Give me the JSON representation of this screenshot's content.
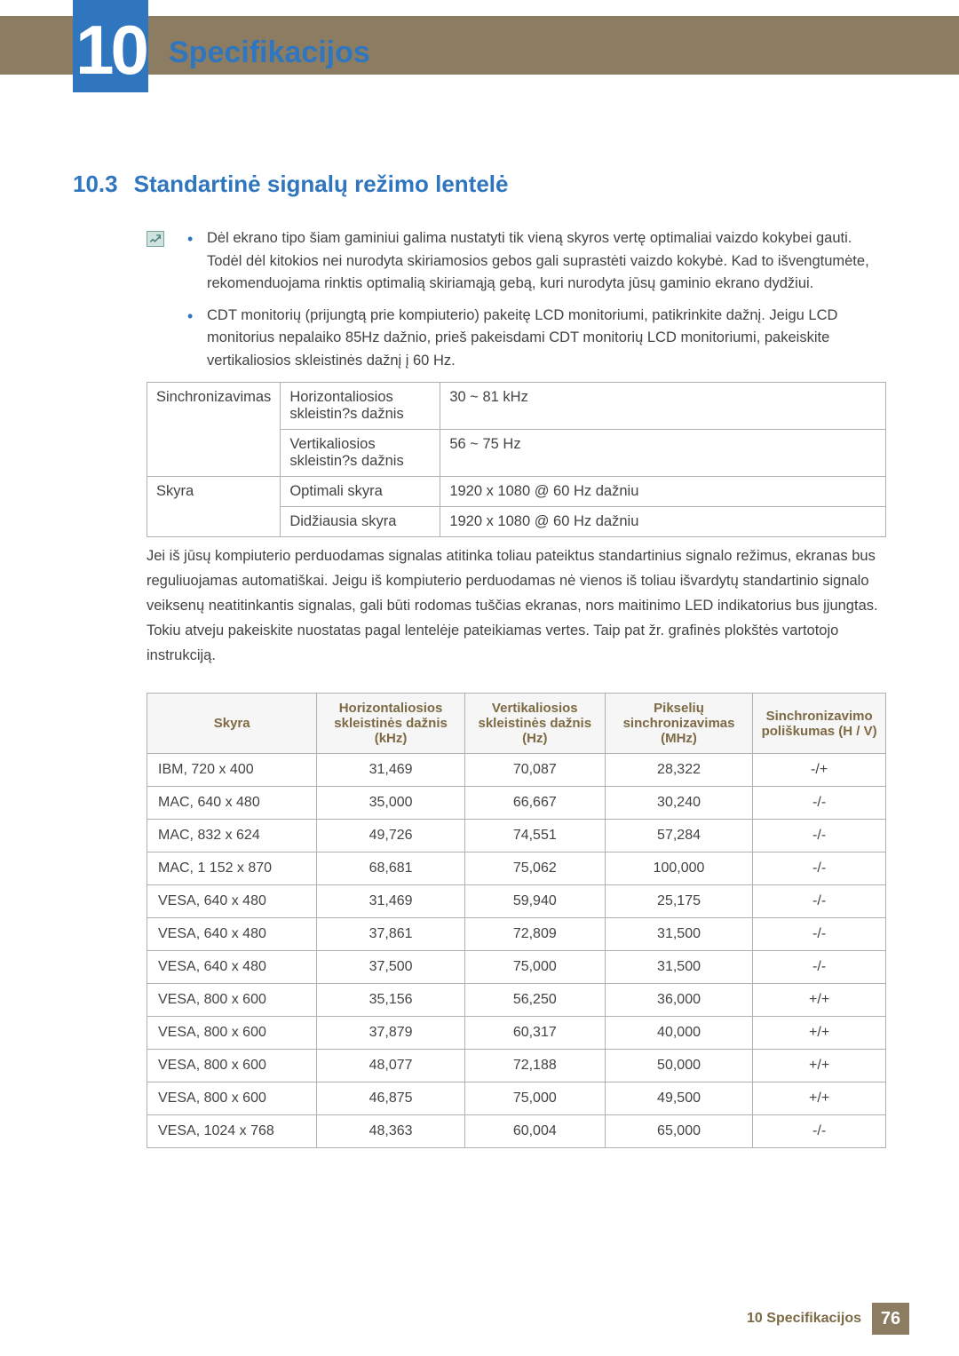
{
  "colors": {
    "banner": "#8c7d62",
    "accent": "#2f76bf",
    "header_text": "#7d6a44",
    "body_text": "#434343",
    "border": "#b0b0b0",
    "th_bg": "#f6f6f6"
  },
  "chapter": {
    "number": "10",
    "title": "Specifikacijos"
  },
  "section": {
    "number": "10.3",
    "title": "Standartinė signalų režimo lentelė"
  },
  "notes": [
    "Dėl ekrano tipo šiam gaminiui galima nustatyti tik vieną skyros vertę optimaliai vaizdo kokybei gauti. Todėl dėl kitokios nei nurodyta skiriamosios gebos gali suprastėti vaizdo kokybė. Kad to išvengtumėte, rekomenduojama rinktis optimalią skiriamąją gebą, kuri nurodyta jūsų gaminio ekrano dydžiui.",
    "CDT monitorių (prijungtą prie kompiuterio) pakeitę LCD monitoriumi, patikrinkite dažnį. Jeigu LCD monitorius nepalaiko 85Hz dažnio, prieš pakeisdami CDT monitorių LCD monitoriumi, pakeiskite vertikaliosios skleistinės dažnį į 60 Hz."
  ],
  "spec_table": {
    "rows": [
      {
        "group": "Sinchronizavimas",
        "label": "Horizontaliosios skleistin?s dažnis",
        "value": "30 ~ 81 kHz"
      },
      {
        "group": "",
        "label": "Vertikaliosios skleistin?s dažnis",
        "value": "56 ~ 75 Hz"
      },
      {
        "group": "Skyra",
        "label": "Optimali skyra",
        "value": "1920 x 1080 @ 60 Hz dažniu"
      },
      {
        "group": "",
        "label": "Didžiausia skyra",
        "value": "1920 x 1080 @ 60 Hz dažniu"
      }
    ]
  },
  "body_paragraph": "Jei iš jūsų kompiuterio perduodamas signalas atitinka toliau pateiktus standartinius signalo režimus, ekranas bus reguliuojamas automatiškai. Jeigu iš kompiuterio perduodamas nė vienos iš toliau išvardytų standartinio signalo veiksenų neatitinkantis signalas, gali būti rodomas tuščias ekranas, nors maitinimo LED indikatorius bus įjungtas. Tokiu atveju pakeiskite nuostatas pagal lentelėje pateikiamas vertes. Taip pat žr. grafinės plokštės vartotojo instrukciją.",
  "big_table": {
    "headers": [
      "Skyra",
      "Horizontaliosios skleistinės dažnis (kHz)",
      "Vertikaliosios skleistinės dažnis (Hz)",
      "Pikselių sinchronizavimas (MHz)",
      "Sinchronizavimo poliškumas (H / V)"
    ],
    "col_widths": [
      "23%",
      "20%",
      "19%",
      "20%",
      "18%"
    ],
    "rows": [
      [
        "IBM, 720 x 400",
        "31,469",
        "70,087",
        "28,322",
        "-/+"
      ],
      [
        "MAC, 640 x 480",
        "35,000",
        "66,667",
        "30,240",
        "-/-"
      ],
      [
        "MAC, 832 x 624",
        "49,726",
        "74,551",
        "57,284",
        "-/-"
      ],
      [
        "MAC, 1 152 x 870",
        "68,681",
        "75,062",
        "100,000",
        "-/-"
      ],
      [
        "VESA, 640 x 480",
        "31,469",
        "59,940",
        "25,175",
        "-/-"
      ],
      [
        "VESA, 640 x 480",
        "37,861",
        "72,809",
        "31,500",
        "-/-"
      ],
      [
        "VESA, 640 x 480",
        "37,500",
        "75,000",
        "31,500",
        "-/-"
      ],
      [
        "VESA, 800 x 600",
        "35,156",
        "56,250",
        "36,000",
        "+/+"
      ],
      [
        "VESA, 800 x 600",
        "37,879",
        "60,317",
        "40,000",
        "+/+"
      ],
      [
        "VESA, 800 x 600",
        "48,077",
        "72,188",
        "50,000",
        "+/+"
      ],
      [
        "VESA, 800 x 600",
        "46,875",
        "75,000",
        "49,500",
        "+/+"
      ],
      [
        "VESA, 1024 x 768",
        "48,363",
        "60,004",
        "65,000",
        "-/-"
      ]
    ]
  },
  "footer": {
    "text": "10 Specifikacijos",
    "page": "76"
  }
}
